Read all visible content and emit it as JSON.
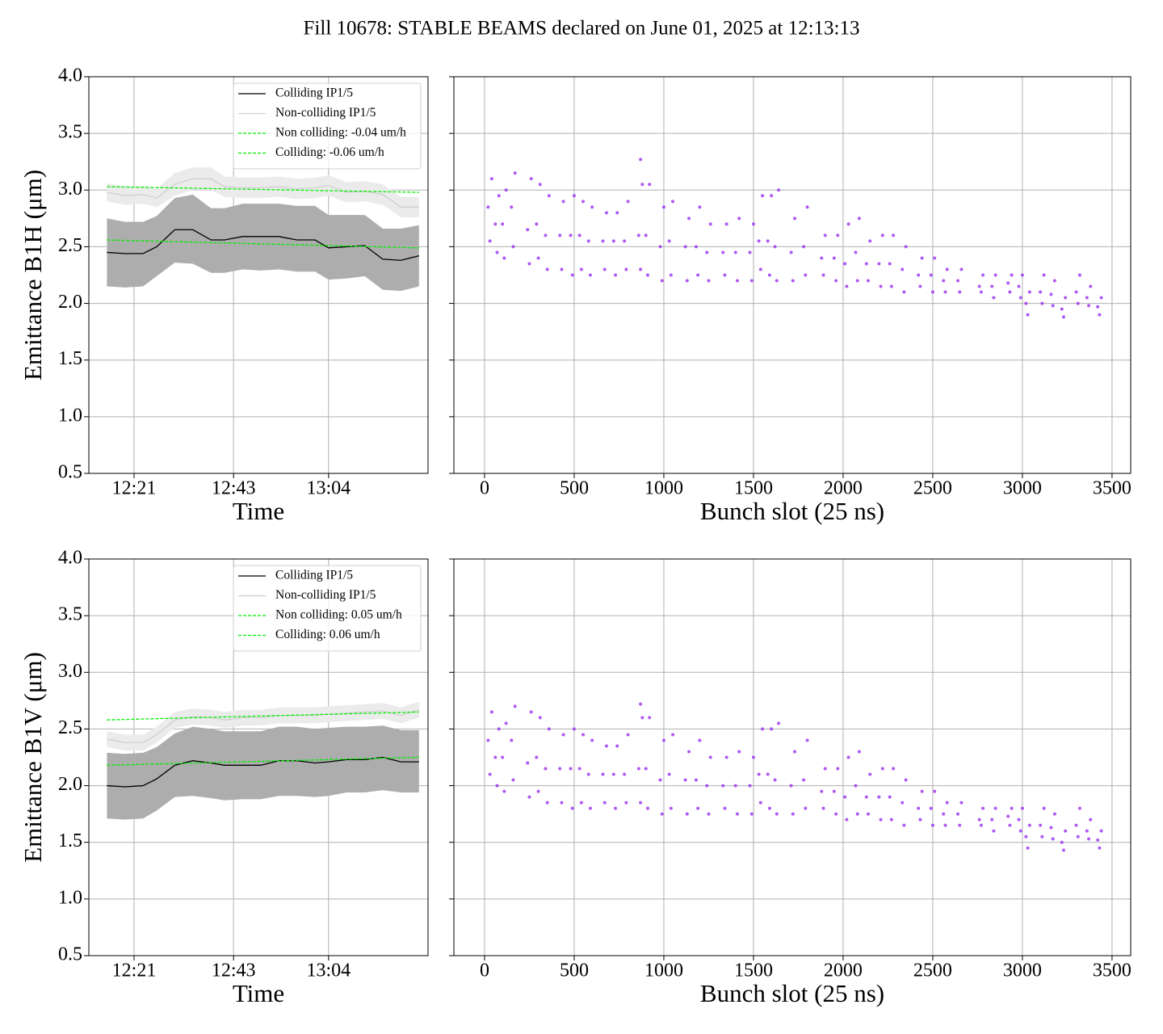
{
  "suptitle": "Fill 10678: STABLE BEAMS declared on June 01, 2025 at 12:13:13",
  "chart_data": [
    {
      "type": "line",
      "xlabel": "Time",
      "ylabel": "Emittance B1H (μm)",
      "xlim": [
        "12:11",
        "13:26"
      ],
      "xticks": [
        "12:21",
        "12:43",
        "13:04"
      ],
      "ylim": [
        0.5,
        4.0
      ],
      "yticks": [
        {
          "value": 0.5,
          "label": "0.5"
        },
        {
          "value": 1,
          "label": "1.0"
        },
        {
          "value": 1.5,
          "label": "1.5"
        },
        {
          "value": 2,
          "label": "2.0"
        },
        {
          "value": 2.5,
          "label": "2.5"
        },
        {
          "value": 3,
          "label": "3.0"
        },
        {
          "value": 3.5,
          "label": "3.5"
        },
        {
          "value": 4,
          "label": "4.0"
        }
      ],
      "grid": true,
      "legend": "upper right",
      "x": [
        "12:15",
        "12:19",
        "12:23",
        "12:26",
        "12:30",
        "12:34",
        "12:38",
        "12:41",
        "12:45",
        "12:49",
        "12:53",
        "12:57",
        "13:01",
        "13:04",
        "13:08",
        "13:12",
        "13:16",
        "13:20",
        "13:24"
      ],
      "bands": [
        {
          "color": "#ebebeb",
          "lower": [
            2.9,
            2.87,
            2.88,
            2.85,
            2.95,
            3.0,
            3.0,
            2.94,
            2.93,
            2.93,
            2.94,
            2.92,
            2.93,
            2.95,
            2.89,
            2.9,
            2.87,
            2.76,
            2.76
          ],
          "upper": [
            3.06,
            3.03,
            3.04,
            3.01,
            3.15,
            3.2,
            3.2,
            3.12,
            3.11,
            3.11,
            3.12,
            3.1,
            3.11,
            3.13,
            3.07,
            3.08,
            3.05,
            2.94,
            2.94
          ]
        },
        {
          "color": "#adadad",
          "lower": [
            2.15,
            2.14,
            2.15,
            2.24,
            2.36,
            2.35,
            2.27,
            2.27,
            2.3,
            2.29,
            2.3,
            2.28,
            2.28,
            2.21,
            2.22,
            2.24,
            2.12,
            2.11,
            2.15
          ],
          "upper": [
            2.75,
            2.72,
            2.72,
            2.77,
            2.93,
            2.96,
            2.84,
            2.84,
            2.88,
            2.88,
            2.88,
            2.86,
            2.86,
            2.78,
            2.78,
            2.78,
            2.66,
            2.66,
            2.69
          ]
        }
      ],
      "series": [
        {
          "name": "Colliding IP1/5",
          "color": "#000000",
          "values": [
            2.45,
            2.44,
            2.44,
            2.5,
            2.65,
            2.65,
            2.56,
            2.56,
            2.59,
            2.59,
            2.59,
            2.56,
            2.56,
            2.49,
            2.5,
            2.51,
            2.39,
            2.38,
            2.42
          ]
        },
        {
          "name": "Non-colliding IP1/5",
          "color": "#cfcfcf",
          "values": [
            2.98,
            2.95,
            2.96,
            2.93,
            3.05,
            3.1,
            3.1,
            3.03,
            3.02,
            3.02,
            3.03,
            3.01,
            3.02,
            3.04,
            2.98,
            2.99,
            2.96,
            2.85,
            2.85
          ]
        },
        {
          "name": "Non colliding: -0.04 um/h",
          "color": "#00ee00",
          "dash": true,
          "x": [
            "12:15",
            "13:24"
          ],
          "values": [
            3.03,
            2.98
          ]
        },
        {
          "name": "Colliding: -0.06 um/h",
          "color": "#00ee00",
          "dash": true,
          "x": [
            "12:15",
            "13:24"
          ],
          "values": [
            2.56,
            2.49
          ]
        }
      ]
    },
    {
      "type": "scatter",
      "xlabel": "Bunch slot (25 ns)",
      "xlim": [
        -171,
        3604
      ],
      "xticks": [
        0,
        500,
        1000,
        1500,
        2000,
        2500,
        3000,
        3500
      ],
      "ylim": [
        0.5,
        4.0
      ],
      "yticks": [
        0.5,
        1,
        1.5,
        2,
        2.5,
        3,
        3.5,
        4
      ],
      "show_ytick_labels": false,
      "grid": true,
      "color": "#9b30f0",
      "x": [
        20,
        30,
        40,
        60,
        70,
        80,
        100,
        110,
        120,
        150,
        160,
        170,
        240,
        250,
        260,
        290,
        300,
        310,
        340,
        350,
        360,
        420,
        430,
        440,
        480,
        490,
        500,
        530,
        540,
        550,
        580,
        590,
        600,
        660,
        670,
        680,
        720,
        730,
        740,
        780,
        790,
        800,
        860,
        870,
        880,
        900,
        910,
        920,
        980,
        990,
        1000,
        1030,
        1040,
        1050,
        1120,
        1130,
        1140,
        1180,
        1190,
        1200,
        1240,
        1250,
        1260,
        1330,
        1340,
        1350,
        1400,
        1410,
        1420,
        1480,
        1490,
        1500,
        1530,
        1540,
        1550,
        1580,
        1590,
        1600,
        1620,
        1630,
        1640,
        1710,
        1720,
        1730,
        1780,
        1790,
        1800,
        1880,
        1890,
        1900,
        1950,
        1960,
        1970,
        2010,
        2020,
        2030,
        2070,
        2080,
        2090,
        2130,
        2140,
        2150,
        2200,
        2210,
        2220,
        2260,
        2270,
        2280,
        2330,
        2340,
        2350,
        2420,
        2430,
        2440,
        2490,
        2500,
        2510,
        2560,
        2570,
        2580,
        2640,
        2650,
        2660,
        2760,
        2770,
        2780,
        2830,
        2840,
        2850,
        2920,
        2930,
        2940,
        2980,
        2990,
        3000,
        3020,
        3030,
        3040,
        3100,
        3110,
        3120,
        3160,
        3170,
        3180,
        3220,
        3230,
        3240,
        3300,
        3310,
        3320,
        3360,
        3370,
        3380,
        3420,
        3430,
        3440,
        870
      ],
      "values": [
        2.85,
        2.55,
        3.1,
        2.7,
        2.45,
        2.95,
        2.7,
        2.4,
        3.0,
        2.85,
        2.5,
        3.15,
        2.65,
        2.35,
        3.1,
        2.7,
        2.4,
        3.05,
        2.6,
        2.3,
        2.95,
        2.6,
        2.3,
        2.9,
        2.6,
        2.25,
        2.95,
        2.6,
        2.3,
        2.9,
        2.55,
        2.25,
        2.85,
        2.55,
        2.3,
        2.8,
        2.55,
        2.25,
        2.8,
        2.55,
        2.3,
        2.9,
        2.6,
        2.3,
        3.05,
        2.6,
        2.25,
        3.05,
        2.5,
        2.2,
        2.85,
        2.55,
        2.25,
        2.9,
        2.5,
        2.2,
        2.75,
        2.5,
        2.25,
        2.85,
        2.45,
        2.2,
        2.7,
        2.45,
        2.25,
        2.7,
        2.45,
        2.2,
        2.75,
        2.45,
        2.2,
        2.7,
        2.55,
        2.3,
        2.95,
        2.55,
        2.25,
        2.95,
        2.5,
        2.2,
        3.0,
        2.45,
        2.2,
        2.75,
        2.5,
        2.25,
        2.85,
        2.4,
        2.25,
        2.6,
        2.4,
        2.2,
        2.6,
        2.35,
        2.15,
        2.7,
        2.45,
        2.2,
        2.75,
        2.35,
        2.2,
        2.55,
        2.35,
        2.15,
        2.6,
        2.35,
        2.15,
        2.6,
        2.3,
        2.1,
        2.5,
        2.25,
        2.15,
        2.4,
        2.25,
        2.1,
        2.4,
        2.2,
        2.1,
        2.3,
        2.2,
        2.1,
        2.3,
        2.15,
        2.1,
        2.25,
        2.15,
        2.05,
        2.25,
        2.18,
        2.1,
        2.25,
        2.15,
        2.05,
        2.25,
        2.0,
        1.9,
        2.1,
        2.1,
        2.0,
        2.25,
        2.08,
        1.98,
        2.2,
        1.95,
        1.88,
        2.05,
        2.1,
        2.0,
        2.25,
        2.05,
        1.98,
        2.15,
        1.97,
        1.9,
        2.05,
        3.27
      ]
    },
    {
      "type": "line",
      "xlabel": "Time",
      "ylabel": "Emittance B1V (μm)",
      "xlim": [
        "12:11",
        "13:26"
      ],
      "xticks": [
        "12:21",
        "12:43",
        "13:04"
      ],
      "ylim": [
        0.5,
        4.0
      ],
      "yticks": [
        {
          "value": 0.5,
          "label": "0.5"
        },
        {
          "value": 1,
          "label": "1.0"
        },
        {
          "value": 1.5,
          "label": "1.5"
        },
        {
          "value": 2,
          "label": "2.0"
        },
        {
          "value": 2.5,
          "label": "2.5"
        },
        {
          "value": 3,
          "label": "3.0"
        },
        {
          "value": 3.5,
          "label": "3.5"
        },
        {
          "value": 4,
          "label": "4.0"
        }
      ],
      "grid": true,
      "legend": "upper right",
      "x": [
        "12:15",
        "12:19",
        "12:23",
        "12:26",
        "12:30",
        "12:34",
        "12:38",
        "12:41",
        "12:45",
        "12:49",
        "12:53",
        "12:57",
        "13:01",
        "13:04",
        "13:08",
        "13:12",
        "13:16",
        "13:20",
        "13:24"
      ],
      "bands": [
        {
          "color": "#ebebeb",
          "lower": [
            2.34,
            2.31,
            2.31,
            2.38,
            2.51,
            2.54,
            2.53,
            2.51,
            2.53,
            2.53,
            2.55,
            2.55,
            2.55,
            2.56,
            2.57,
            2.58,
            2.59,
            2.55,
            2.6
          ],
          "upper": [
            2.48,
            2.45,
            2.45,
            2.52,
            2.65,
            2.68,
            2.67,
            2.65,
            2.67,
            2.67,
            2.69,
            2.69,
            2.69,
            2.7,
            2.71,
            2.72,
            2.73,
            2.69,
            2.74
          ]
        },
        {
          "color": "#adadad",
          "lower": [
            1.71,
            1.7,
            1.71,
            1.78,
            1.9,
            1.91,
            1.89,
            1.87,
            1.88,
            1.88,
            1.91,
            1.91,
            1.9,
            1.91,
            1.94,
            1.94,
            1.96,
            1.94,
            1.94
          ],
          "upper": [
            2.29,
            2.28,
            2.29,
            2.34,
            2.46,
            2.52,
            2.5,
            2.48,
            2.48,
            2.48,
            2.52,
            2.52,
            2.5,
            2.51,
            2.52,
            2.52,
            2.53,
            2.49,
            2.49
          ]
        }
      ],
      "series": [
        {
          "name": "Colliding IP1/5",
          "color": "#000000",
          "values": [
            2.0,
            1.99,
            2.0,
            2.06,
            2.18,
            2.22,
            2.2,
            2.18,
            2.18,
            2.18,
            2.22,
            2.22,
            2.2,
            2.21,
            2.23,
            2.23,
            2.25,
            2.21,
            2.21
          ]
        },
        {
          "name": "Non-colliding IP1/5",
          "color": "#cfcfcf",
          "values": [
            2.41,
            2.38,
            2.38,
            2.45,
            2.58,
            2.61,
            2.6,
            2.58,
            2.6,
            2.6,
            2.62,
            2.62,
            2.62,
            2.63,
            2.64,
            2.65,
            2.66,
            2.62,
            2.67
          ]
        },
        {
          "name": "Non colliding: 0.05 um/h",
          "color": "#00ee00",
          "dash": true,
          "x": [
            "12:15",
            "13:24"
          ],
          "values": [
            2.58,
            2.65
          ]
        },
        {
          "name": "Colliding: 0.06 um/h",
          "color": "#00ee00",
          "dash": true,
          "x": [
            "12:15",
            "13:24"
          ],
          "values": [
            2.18,
            2.25
          ]
        }
      ]
    },
    {
      "type": "scatter",
      "xlabel": "Bunch slot (25 ns)",
      "xlim": [
        -171,
        3604
      ],
      "xticks": [
        0,
        500,
        1000,
        1500,
        2000,
        2500,
        3000,
        3500
      ],
      "ylim": [
        0.5,
        4.0
      ],
      "yticks": [
        0.5,
        1,
        1.5,
        2,
        2.5,
        3,
        3.5,
        4
      ],
      "show_ytick_labels": false,
      "grid": true,
      "color": "#9b30f0",
      "x": [
        20,
        30,
        40,
        60,
        70,
        80,
        100,
        110,
        120,
        150,
        160,
        170,
        240,
        250,
        260,
        290,
        300,
        310,
        340,
        350,
        360,
        420,
        430,
        440,
        480,
        490,
        500,
        530,
        540,
        550,
        580,
        590,
        600,
        660,
        670,
        680,
        720,
        730,
        740,
        780,
        790,
        800,
        860,
        870,
        880,
        900,
        910,
        920,
        980,
        990,
        1000,
        1030,
        1040,
        1050,
        1120,
        1130,
        1140,
        1180,
        1190,
        1200,
        1240,
        1250,
        1260,
        1330,
        1340,
        1350,
        1400,
        1410,
        1420,
        1480,
        1490,
        1500,
        1530,
        1540,
        1550,
        1580,
        1590,
        1600,
        1620,
        1630,
        1640,
        1710,
        1720,
        1730,
        1780,
        1790,
        1800,
        1880,
        1890,
        1900,
        1950,
        1960,
        1970,
        2010,
        2020,
        2030,
        2070,
        2080,
        2090,
        2130,
        2140,
        2150,
        2200,
        2210,
        2220,
        2260,
        2270,
        2280,
        2330,
        2340,
        2350,
        2420,
        2430,
        2440,
        2490,
        2500,
        2510,
        2560,
        2570,
        2580,
        2640,
        2650,
        2660,
        2760,
        2770,
        2780,
        2830,
        2840,
        2850,
        2920,
        2930,
        2940,
        2980,
        2990,
        3000,
        3020,
        3030,
        3040,
        3100,
        3110,
        3120,
        3160,
        3170,
        3180,
        3220,
        3230,
        3240,
        3300,
        3310,
        3320,
        3360,
        3370,
        3380,
        3420,
        3430,
        3440,
        870
      ],
      "values": [
        2.4,
        2.1,
        2.65,
        2.25,
        2.0,
        2.5,
        2.25,
        1.95,
        2.55,
        2.4,
        2.05,
        2.7,
        2.2,
        1.9,
        2.65,
        2.25,
        1.95,
        2.6,
        2.15,
        1.85,
        2.5,
        2.15,
        1.85,
        2.45,
        2.15,
        1.8,
        2.5,
        2.15,
        1.85,
        2.45,
        2.1,
        1.8,
        2.4,
        2.1,
        1.85,
        2.35,
        2.1,
        1.8,
        2.35,
        2.1,
        1.85,
        2.45,
        2.15,
        1.85,
        2.6,
        2.15,
        1.8,
        2.6,
        2.05,
        1.75,
        2.4,
        2.1,
        1.8,
        2.45,
        2.05,
        1.75,
        2.3,
        2.05,
        1.8,
        2.4,
        2.0,
        1.75,
        2.25,
        2.0,
        1.8,
        2.25,
        2.0,
        1.75,
        2.3,
        2.0,
        1.75,
        2.25,
        2.1,
        1.85,
        2.5,
        2.1,
        1.8,
        2.5,
        2.05,
        1.75,
        2.55,
        2.0,
        1.75,
        2.3,
        2.05,
        1.8,
        2.4,
        1.95,
        1.8,
        2.15,
        1.95,
        1.75,
        2.15,
        1.9,
        1.7,
        2.25,
        2.0,
        1.75,
        2.3,
        1.9,
        1.75,
        2.1,
        1.9,
        1.7,
        2.15,
        1.9,
        1.7,
        2.15,
        1.85,
        1.65,
        2.05,
        1.8,
        1.7,
        1.95,
        1.8,
        1.65,
        1.95,
        1.75,
        1.65,
        1.85,
        1.75,
        1.65,
        1.85,
        1.7,
        1.65,
        1.8,
        1.7,
        1.6,
        1.8,
        1.73,
        1.65,
        1.8,
        1.7,
        1.6,
        1.8,
        1.55,
        1.45,
        1.65,
        1.65,
        1.55,
        1.8,
        1.63,
        1.53,
        1.75,
        1.5,
        1.43,
        1.6,
        1.65,
        1.55,
        1.8,
        1.6,
        1.53,
        1.7,
        1.52,
        1.45,
        1.6,
        2.72
      ]
    }
  ]
}
